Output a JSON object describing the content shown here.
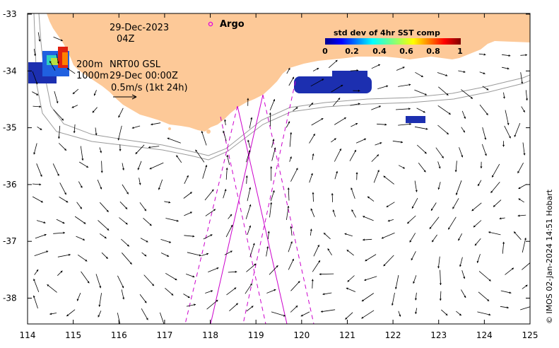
{
  "map": {
    "lon_ticks": [
      "114",
      "115",
      "116",
      "117",
      "118",
      "119",
      "120",
      "121",
      "122",
      "123",
      "124",
      "125"
    ],
    "lat_ticks": [
      "-33",
      "-34",
      "-35",
      "-36",
      "-37",
      "-38"
    ],
    "date_label": "29-Dec-2023",
    "time_label": "04Z",
    "contour_label_200": "200m",
    "contour_label_1000": "1000m",
    "model_label": "NRT00 GSL",
    "model_time": "29-Dec 00:00Z",
    "scale_arrow_label": "0.5m/s (1kt 24h)",
    "argo_label": "Argo",
    "credit": "© IMOS 02-Jan-2024 14:51 Hobart",
    "colors": {
      "land": "#fdc998",
      "track": "#cc00cc",
      "isobath": "#9a9a9a",
      "anomaly": "#1c2fb0"
    }
  },
  "legend": {
    "title": "std dev of 4hr SST comp",
    "ticks": [
      "0",
      "0.2",
      "0.4",
      "0.6",
      "0.8",
      "1"
    ],
    "colormap": "jet"
  }
}
